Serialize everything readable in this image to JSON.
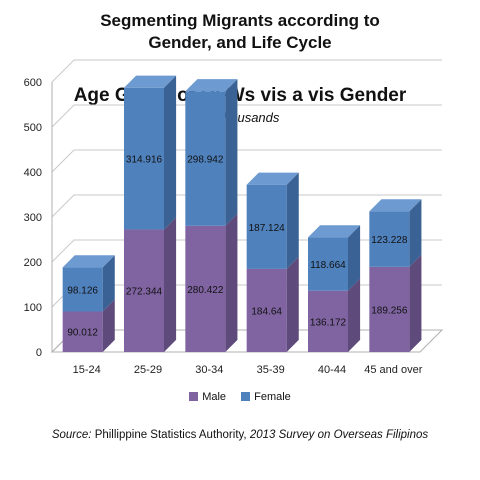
{
  "header": {
    "line1": "Segmenting Migrants according to",
    "line2": "Gender, and Life Cycle"
  },
  "source": {
    "label": "Source:",
    "publisher": "Phillippine Statistics Authority,",
    "title": "2013 Survey on Overseas Filipinos"
  },
  "legend": {
    "male": "Male",
    "female": "Female"
  },
  "colors": {
    "male_front": "#8064a2",
    "male_side": "#5f4a7c",
    "male_top": "#9d87ba",
    "female_front": "#4f81bd",
    "female_side": "#3b6294",
    "female_top": "#6d9ad0"
  },
  "chart_data": {
    "type": "bar",
    "stacked": true,
    "three_d": true,
    "title": "Age Group of OFWs vis a vis Gender",
    "subtitle": "In Thousands",
    "categories": [
      "15-24",
      "25-29",
      "30-34",
      "35-39",
      "40-44",
      "45 and over"
    ],
    "series": [
      {
        "name": "Male",
        "values": [
          90.012,
          272.344,
          280.422,
          184.64,
          136.172,
          189.256
        ],
        "labels": [
          "90.012",
          "272.344",
          "280.422",
          "184.64",
          "136.172",
          "189.256"
        ]
      },
      {
        "name": "Female",
        "values": [
          98.126,
          314.916,
          298.942,
          187.124,
          118.664,
          123.228
        ],
        "labels": [
          "98.126",
          "314.916",
          "298.942",
          "187.124",
          "118.664",
          "123.228"
        ]
      }
    ],
    "ylim": [
      0,
      600
    ],
    "yticks": [
      "0",
      "100",
      "200",
      "300",
      "400",
      "500",
      "600"
    ],
    "grid": true,
    "legend_position": "bottom"
  }
}
